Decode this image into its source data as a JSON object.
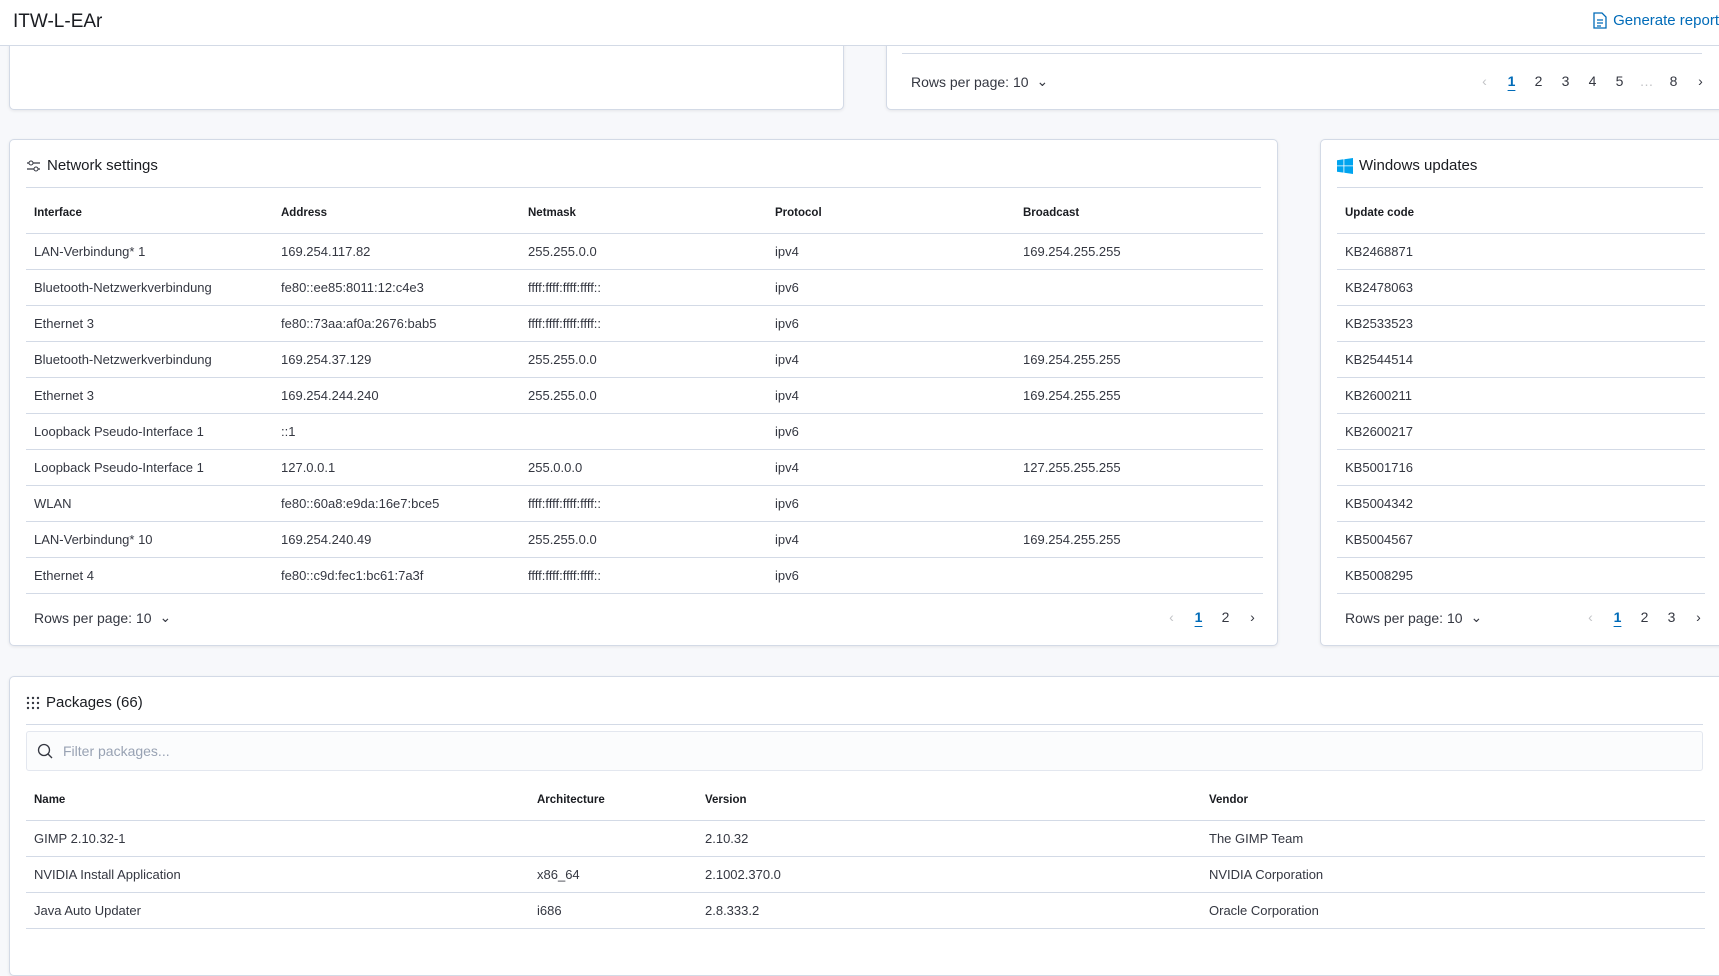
{
  "header": {
    "title": "ITW-L-EAr",
    "generate_report": "Generate report"
  },
  "top_right": {
    "rows_per_page": "Rows per page: 10",
    "pages": [
      "1",
      "2",
      "3",
      "4",
      "5",
      "…",
      "8"
    ]
  },
  "network": {
    "title": "Network settings",
    "columns": [
      "Interface",
      "Address",
      "Netmask",
      "Protocol",
      "Broadcast"
    ],
    "rows": [
      [
        "LAN-Verbindung* 1",
        "169.254.117.82",
        "255.255.0.0",
        "ipv4",
        "169.254.255.255"
      ],
      [
        "Bluetooth-Netzwerkverbindung",
        "fe80::ee85:8011:12:c4e3",
        "ffff:ffff:ffff:ffff::",
        "ipv6",
        ""
      ],
      [
        "Ethernet 3",
        "fe80::73aa:af0a:2676:bab5",
        "ffff:ffff:ffff:ffff::",
        "ipv6",
        ""
      ],
      [
        "Bluetooth-Netzwerkverbindung",
        "169.254.37.129",
        "255.255.0.0",
        "ipv4",
        "169.254.255.255"
      ],
      [
        "Ethernet 3",
        "169.254.244.240",
        "255.255.0.0",
        "ipv4",
        "169.254.255.255"
      ],
      [
        "Loopback Pseudo-Interface 1",
        "::1",
        "",
        "ipv6",
        ""
      ],
      [
        "Loopback Pseudo-Interface 1",
        "127.0.0.1",
        "255.0.0.0",
        "ipv4",
        "127.255.255.255"
      ],
      [
        "WLAN",
        "fe80::60a8:e9da:16e7:bce5",
        "ffff:ffff:ffff:ffff::",
        "ipv6",
        ""
      ],
      [
        "LAN-Verbindung* 10",
        "169.254.240.49",
        "255.255.0.0",
        "ipv4",
        "169.254.255.255"
      ],
      [
        "Ethernet 4",
        "fe80::c9d:fec1:bc61:7a3f",
        "ffff:ffff:ffff:ffff::",
        "ipv6",
        ""
      ]
    ],
    "rows_per_page": "Rows per page: 10",
    "pages": [
      "1",
      "2"
    ]
  },
  "updates": {
    "title": "Windows updates",
    "columns": [
      "Update code"
    ],
    "rows": [
      [
        "KB2468871"
      ],
      [
        "KB2478063"
      ],
      [
        "KB2533523"
      ],
      [
        "KB2544514"
      ],
      [
        "KB2600211"
      ],
      [
        "KB2600217"
      ],
      [
        "KB5001716"
      ],
      [
        "KB5004342"
      ],
      [
        "KB5004567"
      ],
      [
        "KB5008295"
      ]
    ],
    "rows_per_page": "Rows per page: 10",
    "pages": [
      "1",
      "2",
      "3"
    ]
  },
  "packages": {
    "title": "Packages (66)",
    "filter_placeholder": "Filter packages...",
    "filter_value": "",
    "columns": [
      "Name",
      "Architecture",
      "Version",
      "Vendor"
    ],
    "rows": [
      [
        "GIMP 2.10.32-1",
        "",
        "2.10.32",
        "The GIMP Team"
      ],
      [
        "NVIDIA Install Application",
        "x86_64",
        "2.1002.370.0",
        "NVIDIA Corporation"
      ],
      [
        "Java Auto Updater",
        "i686",
        "2.8.333.2",
        "Oracle Corporation"
      ]
    ]
  },
  "colors": {
    "accent": "#006bb8",
    "windows": "#00a4ef",
    "border": "#d3dae6"
  }
}
